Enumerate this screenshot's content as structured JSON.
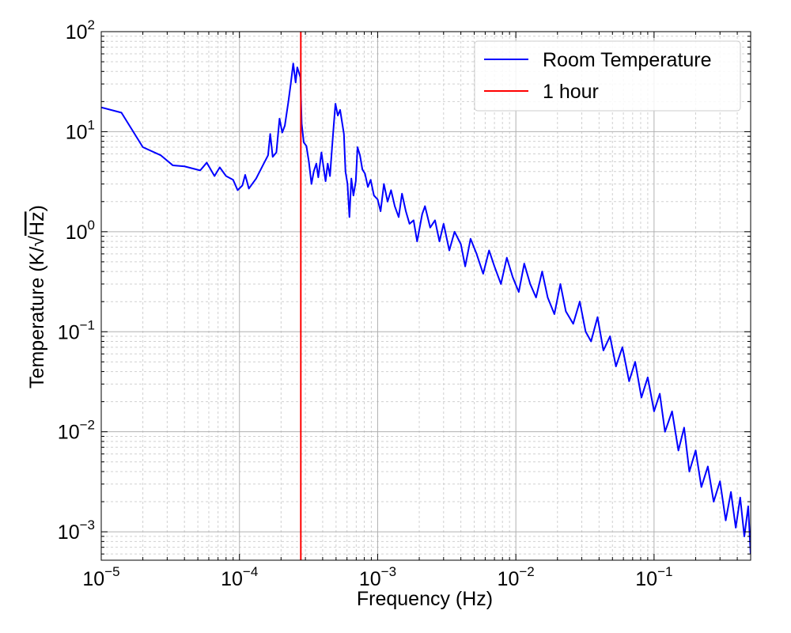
{
  "chart_data": {
    "type": "line",
    "xlabel": "Frequency (Hz)",
    "ylabel_prefix": "Temperature (K/",
    "ylabel_radicand": "Hz",
    "ylabel_suffix": ")",
    "xscale": "log",
    "yscale": "log",
    "xlim": [
      1e-05,
      0.5
    ],
    "ylim": [
      0.00052,
      100
    ],
    "grid": true,
    "minor_grid": true,
    "legend_position": "top-right",
    "x_ticks": [
      {
        "value": 1e-05,
        "base": "10",
        "exp": "−5"
      },
      {
        "value": 0.0001,
        "base": "10",
        "exp": "−4"
      },
      {
        "value": 0.001,
        "base": "10",
        "exp": "−3"
      },
      {
        "value": 0.01,
        "base": "10",
        "exp": "−2"
      },
      {
        "value": 0.1,
        "base": "10",
        "exp": "−1"
      }
    ],
    "y_ticks": [
      {
        "value": 0.001,
        "base": "10",
        "exp": "−3"
      },
      {
        "value": 0.01,
        "base": "10",
        "exp": "−2"
      },
      {
        "value": 0.1,
        "base": "10",
        "exp": "−1"
      },
      {
        "value": 1,
        "base": "10",
        "exp": "0"
      },
      {
        "value": 10,
        "base": "10",
        "exp": "1"
      },
      {
        "value": 100,
        "base": "10",
        "exp": "2"
      }
    ],
    "series": [
      {
        "name": "Room Temperature",
        "color": "#0000ff",
        "points": [
          [
            1e-05,
            17.5
          ],
          [
            1.4e-05,
            15.5
          ],
          [
            2e-05,
            7.0
          ],
          [
            2.7e-05,
            5.8
          ],
          [
            3.3e-05,
            4.6
          ],
          [
            4e-05,
            4.5
          ],
          [
            5.2e-05,
            4.1
          ],
          [
            5.8e-05,
            4.9
          ],
          [
            6.6e-05,
            3.6
          ],
          [
            7.2e-05,
            4.4
          ],
          [
            8e-05,
            3.6
          ],
          [
            9e-05,
            3.3
          ],
          [
            9.7e-05,
            2.6
          ],
          [
            0.000105,
            2.9
          ],
          [
            0.00011,
            3.7
          ],
          [
            0.000117,
            2.7
          ],
          [
            0.000132,
            3.4
          ],
          [
            0.00015,
            4.8
          ],
          [
            0.000161,
            5.8
          ],
          [
            0.000167,
            9.5
          ],
          [
            0.000174,
            5.6
          ],
          [
            0.000185,
            6.2
          ],
          [
            0.000195,
            13.5
          ],
          [
            0.000204,
            9.8
          ],
          [
            0.000213,
            11.5
          ],
          [
            0.000226,
            20.0
          ],
          [
            0.000235,
            30.0
          ],
          [
            0.000245,
            48.0
          ],
          [
            0.000255,
            31.0
          ],
          [
            0.000262,
            44.0
          ],
          [
            0.000276,
            35.0
          ],
          [
            0.000282,
            12.0
          ],
          [
            0.000292,
            7.8
          ],
          [
            0.000305,
            7.2
          ],
          [
            0.000318,
            5.0
          ],
          [
            0.000332,
            3.0
          ],
          [
            0.000345,
            4.0
          ],
          [
            0.00036,
            4.8
          ],
          [
            0.000372,
            3.5
          ],
          [
            0.000392,
            6.2
          ],
          [
            0.000405,
            4.5
          ],
          [
            0.00042,
            3.2
          ],
          [
            0.000435,
            4.8
          ],
          [
            0.000452,
            3.6
          ],
          [
            0.000468,
            7.0
          ],
          [
            0.000482,
            12.0
          ],
          [
            0.000495,
            19.0
          ],
          [
            0.000515,
            14.5
          ],
          [
            0.000535,
            16.5
          ],
          [
            0.000555,
            12.0
          ],
          [
            0.00057,
            9.5
          ],
          [
            0.000585,
            4.0
          ],
          [
            0.000605,
            3.0
          ],
          [
            0.000625,
            1.4
          ],
          [
            0.000645,
            3.4
          ],
          [
            0.000668,
            2.3
          ],
          [
            0.000695,
            3.2
          ],
          [
            0.000715,
            7.0
          ],
          [
            0.000745,
            5.8
          ],
          [
            0.000775,
            4.2
          ],
          [
            0.00081,
            3.8
          ],
          [
            0.00085,
            2.8
          ],
          [
            0.00089,
            3.3
          ],
          [
            0.00094,
            2.3
          ],
          [
            0.001,
            2.1
          ],
          [
            0.00105,
            1.6
          ],
          [
            0.00111,
            3.0
          ],
          [
            0.00118,
            2.0
          ],
          [
            0.00125,
            2.6
          ],
          [
            0.00133,
            1.8
          ],
          [
            0.00142,
            1.4
          ],
          [
            0.0015,
            2.4
          ],
          [
            0.0016,
            1.6
          ],
          [
            0.0017,
            1.2
          ],
          [
            0.00182,
            1.3
          ],
          [
            0.00193,
            0.8
          ],
          [
            0.0021,
            1.5
          ],
          [
            0.0022,
            1.8
          ],
          [
            0.0024,
            1.1
          ],
          [
            0.0026,
            1.3
          ],
          [
            0.0028,
            0.8
          ],
          [
            0.003,
            1.2
          ],
          [
            0.0033,
            0.65
          ],
          [
            0.0036,
            1.0
          ],
          [
            0.004,
            0.75
          ],
          [
            0.0043,
            0.45
          ],
          [
            0.0047,
            0.85
          ],
          [
            0.0052,
            0.6
          ],
          [
            0.0058,
            0.38
          ],
          [
            0.0064,
            0.65
          ],
          [
            0.007,
            0.45
          ],
          [
            0.0078,
            0.3
          ],
          [
            0.0086,
            0.55
          ],
          [
            0.0095,
            0.35
          ],
          [
            0.0105,
            0.25
          ],
          [
            0.0115,
            0.48
          ],
          [
            0.0127,
            0.3
          ],
          [
            0.014,
            0.22
          ],
          [
            0.0155,
            0.4
          ],
          [
            0.017,
            0.22
          ],
          [
            0.019,
            0.15
          ],
          [
            0.021,
            0.3
          ],
          [
            0.023,
            0.16
          ],
          [
            0.026,
            0.12
          ],
          [
            0.029,
            0.2
          ],
          [
            0.032,
            0.1
          ],
          [
            0.035,
            0.08
          ],
          [
            0.039,
            0.14
          ],
          [
            0.043,
            0.065
          ],
          [
            0.048,
            0.09
          ],
          [
            0.053,
            0.045
          ],
          [
            0.059,
            0.07
          ],
          [
            0.066,
            0.032
          ],
          [
            0.073,
            0.05
          ],
          [
            0.081,
            0.022
          ],
          [
            0.09,
            0.035
          ],
          [
            0.1,
            0.016
          ],
          [
            0.11,
            0.024
          ],
          [
            0.12,
            0.01
          ],
          [
            0.135,
            0.016
          ],
          [
            0.15,
            0.0065
          ],
          [
            0.165,
            0.011
          ],
          [
            0.18,
            0.004
          ],
          [
            0.2,
            0.0065
          ],
          [
            0.22,
            0.0028
          ],
          [
            0.245,
            0.0045
          ],
          [
            0.27,
            0.002
          ],
          [
            0.3,
            0.0032
          ],
          [
            0.33,
            0.0013
          ],
          [
            0.36,
            0.0025
          ],
          [
            0.39,
            0.0011
          ],
          [
            0.42,
            0.0022
          ],
          [
            0.45,
            0.0009
          ],
          [
            0.48,
            0.0018
          ],
          [
            0.5,
            0.0006
          ]
        ]
      },
      {
        "name": "1 hour",
        "color": "#ff0000",
        "vertical_line_x": 0.000278
      }
    ]
  }
}
